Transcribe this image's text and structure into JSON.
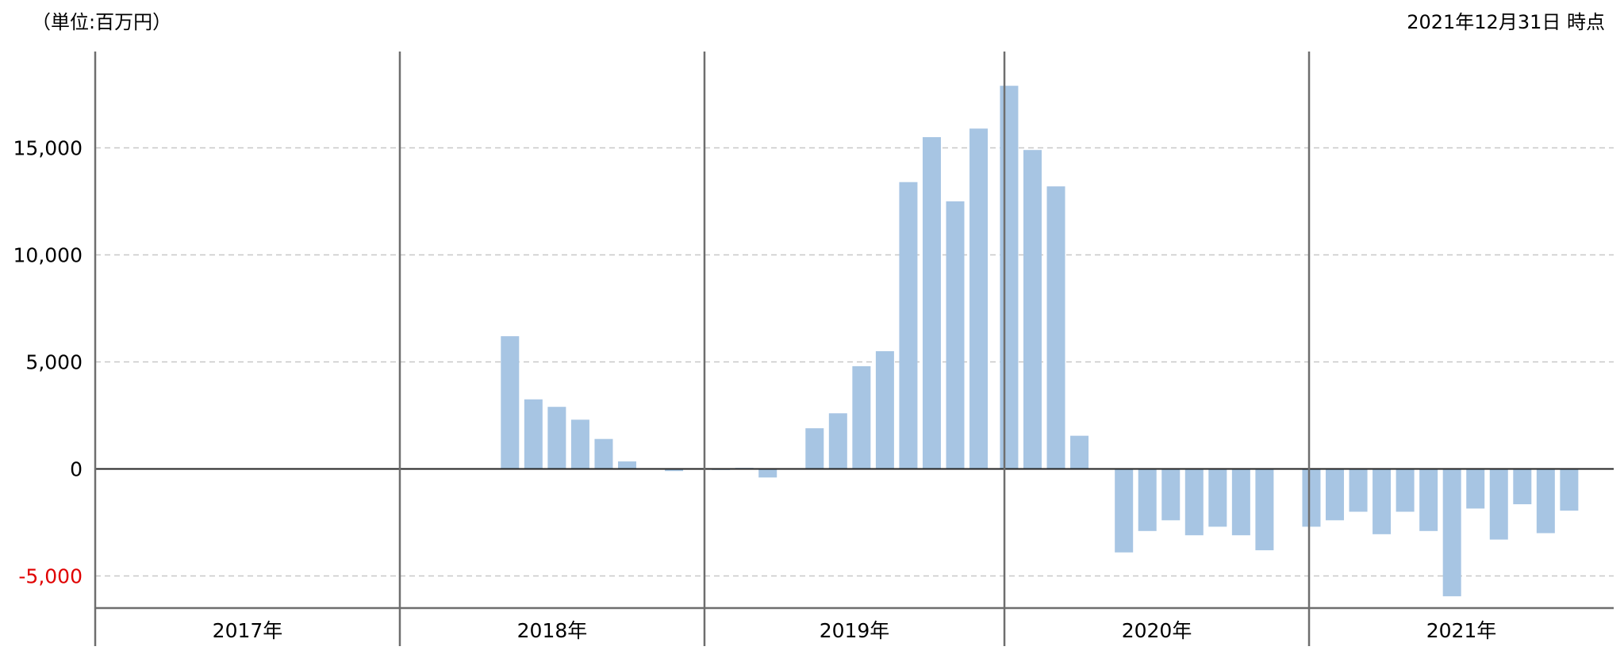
{
  "header": {
    "unit_label": "（単位:百万円）",
    "as_of_label": "2021年12月31日 時点"
  },
  "colors": {
    "bar": "#a7c5e3",
    "grid": "#c8c8c8",
    "axis": "#6e6e6e",
    "zero_line": "#222222",
    "negative_tick": "#e00000",
    "tick_text": "#000000"
  },
  "chart_data": {
    "type": "bar",
    "title": "",
    "xlabel": "",
    "ylabel": "",
    "ylim": [
      -6500,
      19500
    ],
    "y_ticks": [
      -5000,
      0,
      5000,
      10000,
      15000
    ],
    "y_tick_labels": [
      "-5,000",
      "0",
      "5,000",
      "10,000",
      "15,000"
    ],
    "grid": true,
    "years": [
      {
        "label": "2017年",
        "start": 0,
        "end": 13
      },
      {
        "label": "2018年",
        "start": 13,
        "end": 26
      },
      {
        "label": "2019年",
        "start": 26,
        "end": 38.8
      },
      {
        "label": "2020年",
        "start": 38.8,
        "end": 51.8
      },
      {
        "label": "2021年",
        "start": 51.8,
        "end": 64.8
      }
    ],
    "series": [
      {
        "x": [
          17.7,
          18.7,
          19.7,
          20.7,
          21.7,
          22.7,
          24.7,
          26.7,
          27.7,
          28.7,
          30.7,
          31.7,
          32.7,
          33.7,
          34.7,
          35.7,
          36.7,
          37.7,
          39.0,
          40.0,
          41.0,
          42.0,
          43.9,
          44.9,
          45.9,
          46.9,
          47.9,
          48.9,
          49.9,
          51.9,
          52.9,
          53.9,
          54.9,
          55.9,
          56.9,
          57.9,
          58.9,
          59.9,
          60.9,
          61.9,
          62.9
        ],
        "values": [
          6200,
          3250,
          2900,
          2300,
          1400,
          350,
          -100,
          -50,
          50,
          -400,
          1900,
          2600,
          4800,
          5500,
          13400,
          15500,
          12500,
          15900,
          17900,
          14900,
          13200,
          1550,
          -3900,
          -2900,
          -2400,
          -3100,
          -2700,
          -3100,
          -3800,
          -2700,
          -2400,
          -2000,
          -3050,
          -2000,
          -2900,
          -5950,
          -1850,
          -3300,
          -1650,
          -3000,
          -1950
        ]
      }
    ]
  }
}
